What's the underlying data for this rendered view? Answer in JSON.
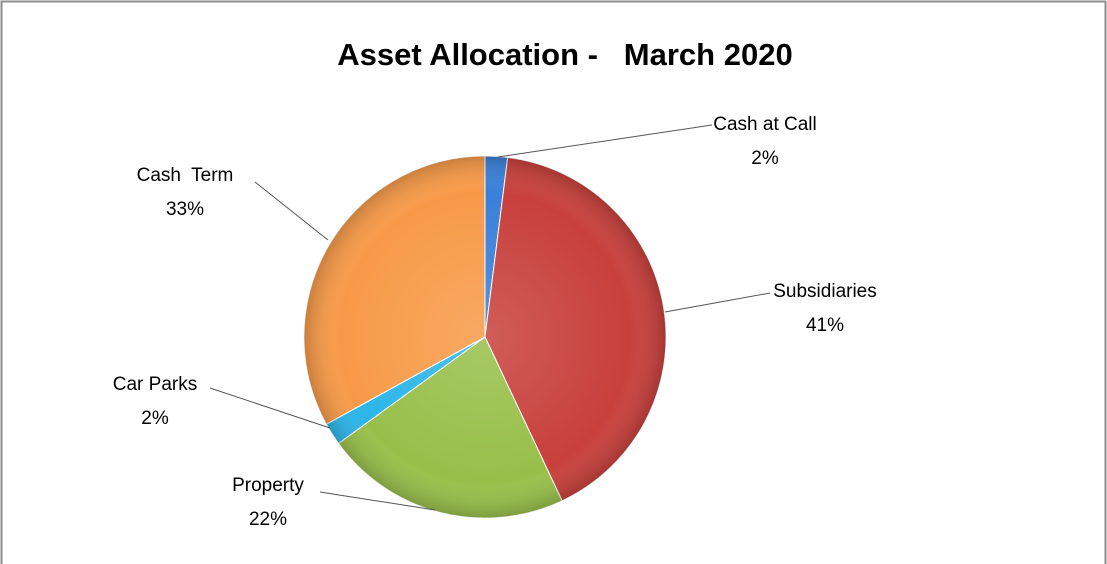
{
  "chart_data": {
    "type": "pie",
    "title": "Asset Allocation -   March 2020",
    "categories": [
      "Cash at Call",
      "Subsidiaries",
      "Property",
      "Car Parks",
      "Cash  Term"
    ],
    "values": [
      2,
      41,
      22,
      2,
      33
    ],
    "value_labels": [
      "2%",
      "41%",
      "22%",
      "2%",
      "33%"
    ],
    "colors": [
      "#3a7fd8",
      "#c8403c",
      "#98bf4a",
      "#2cb6e8",
      "#f79a48"
    ]
  }
}
